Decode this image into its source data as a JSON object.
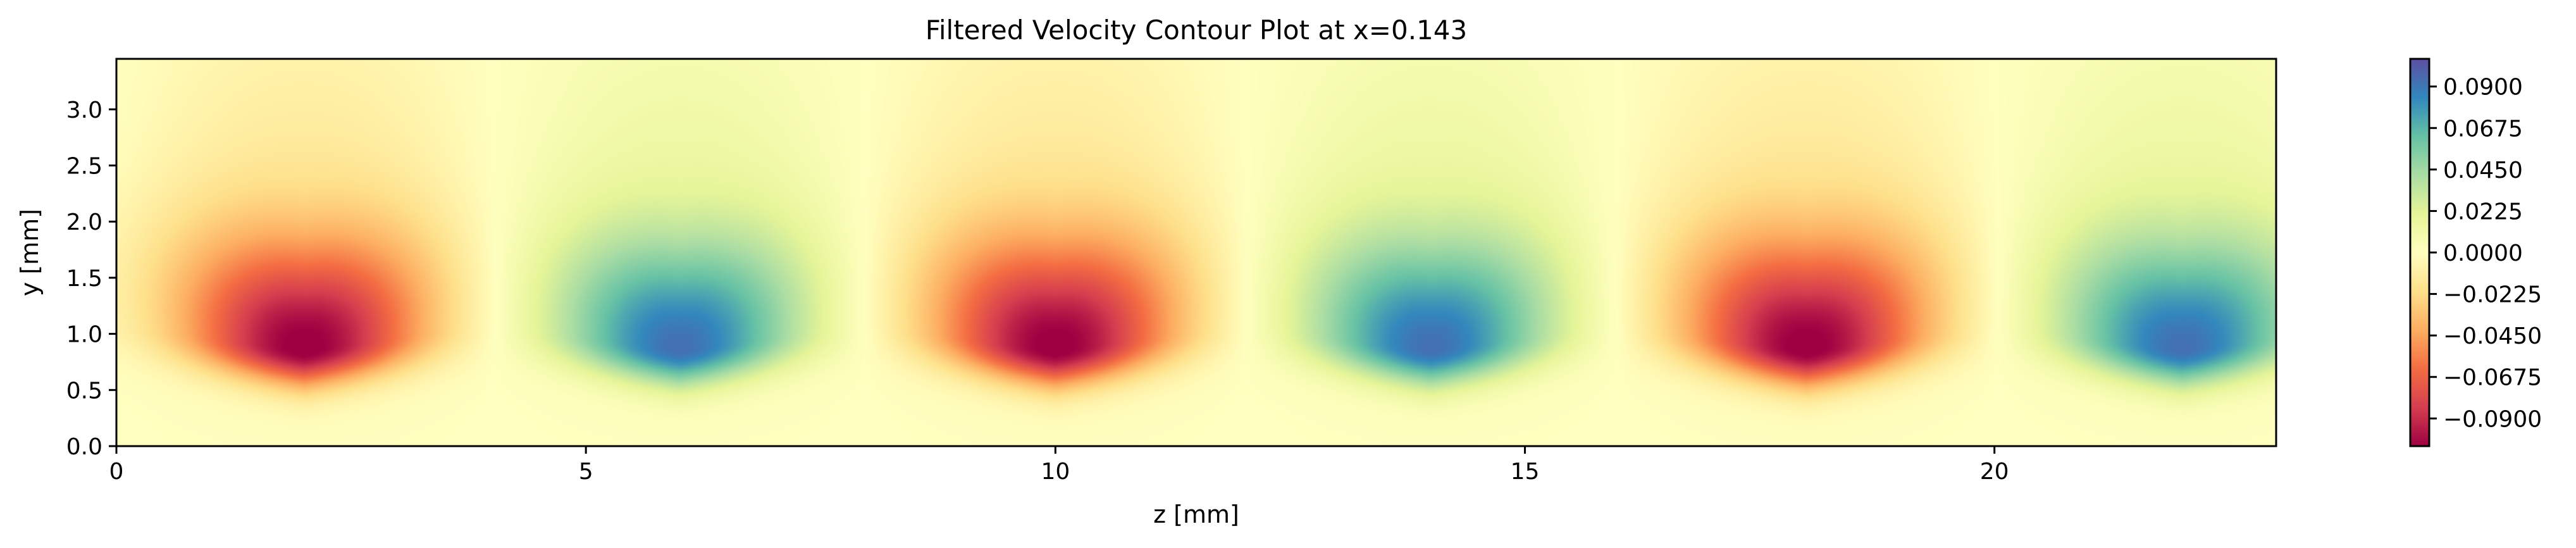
{
  "chart_data": {
    "type": "heatmap",
    "title": "Filtered Velocity Contour Plot at x=0.143",
    "xlabel": "z [mm]",
    "ylabel": "y [mm]",
    "xlim": [
      0,
      23
    ],
    "ylim": [
      0,
      3.45
    ],
    "x_ticks": [
      0,
      5,
      10,
      15,
      20
    ],
    "x_tick_labels": [
      "0",
      "5",
      "10",
      "15",
      "20"
    ],
    "y_ticks": [
      0.0,
      0.5,
      1.0,
      1.5,
      2.0,
      2.5,
      3.0
    ],
    "y_tick_labels": [
      "0.0",
      "0.5",
      "1.0",
      "1.5",
      "2.0",
      "2.5",
      "3.0"
    ],
    "colormap": "Spectral",
    "colorbar": {
      "vmin": -0.105,
      "vmax": 0.105,
      "ticks": [
        -0.09,
        -0.0675,
        -0.045,
        -0.0225,
        0.0,
        0.0225,
        0.045,
        0.0675,
        0.09
      ],
      "tick_labels": [
        "−0.0900",
        "−0.0675",
        "−0.0450",
        "−0.0225",
        "0.0000",
        "0.0225",
        "0.0450",
        "0.0675",
        "0.0900"
      ]
    },
    "extrema": [
      {
        "z": 2,
        "y": 0.85,
        "value": -0.105
      },
      {
        "z": 6,
        "y": 0.85,
        "value": 0.09
      },
      {
        "z": 10,
        "y": 0.85,
        "value": -0.105
      },
      {
        "z": 14,
        "y": 0.85,
        "value": 0.09
      },
      {
        "z": 18,
        "y": 0.85,
        "value": -0.105
      },
      {
        "z": 22,
        "y": 0.85,
        "value": 0.09
      }
    ],
    "field": {
      "form": "streak_pattern",
      "period_z": 8,
      "peak_y": 0.85,
      "note_sign": "negative (red) centered at z=2,10,18; positive (blue) centered at z=6,14,22"
    },
    "grid": false,
    "colors": {
      "low": "#9e0142",
      "high": "#5e4fa2",
      "axis": "#000000"
    }
  }
}
